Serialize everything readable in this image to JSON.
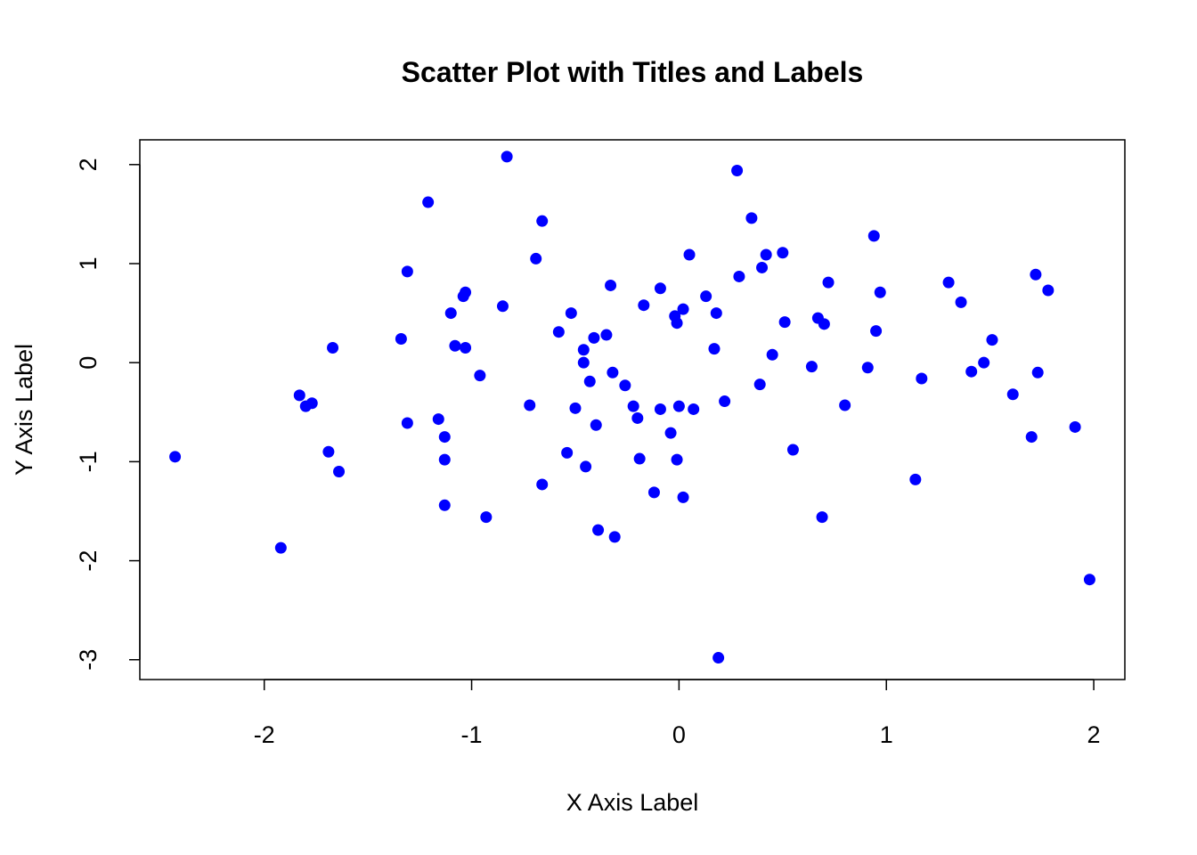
{
  "chart_data": {
    "type": "scatter",
    "title": "Scatter Plot with Titles and Labels",
    "xlabel": "X Axis Label",
    "ylabel": "Y Axis Label",
    "xlim": [
      -2.6,
      2.15
    ],
    "ylim": [
      -3.2,
      2.25
    ],
    "x_ticks": [
      -2,
      -1,
      0,
      1,
      2
    ],
    "x_tick_labels": [
      "-2",
      "-1",
      "0",
      "1",
      "2"
    ],
    "y_ticks": [
      -3,
      -2,
      -1,
      0,
      1,
      2
    ],
    "y_tick_labels": [
      "-3",
      "-2",
      "-1",
      "0",
      "1",
      "2"
    ],
    "grid": false,
    "point_color": "#0000ff",
    "series": [
      {
        "points": [
          [
            -2.43,
            -0.95
          ],
          [
            -1.92,
            -1.87
          ],
          [
            -1.83,
            -0.33
          ],
          [
            -1.8,
            -0.44
          ],
          [
            -1.77,
            -0.41
          ],
          [
            -1.69,
            -0.9
          ],
          [
            -1.67,
            0.15
          ],
          [
            -1.64,
            -1.1
          ],
          [
            -1.34,
            0.24
          ],
          [
            -1.31,
            0.92
          ],
          [
            -1.31,
            -0.61
          ],
          [
            -1.21,
            1.62
          ],
          [
            -1.16,
            -0.57
          ],
          [
            -1.13,
            -0.75
          ],
          [
            -1.13,
            -0.98
          ],
          [
            -1.13,
            -1.44
          ],
          [
            -1.1,
            0.5
          ],
          [
            -1.08,
            0.17
          ],
          [
            -1.04,
            0.67
          ],
          [
            -1.03,
            0.71
          ],
          [
            -1.03,
            0.15
          ],
          [
            -0.96,
            -0.13
          ],
          [
            -0.93,
            -1.56
          ],
          [
            -0.85,
            0.57
          ],
          [
            -0.83,
            2.08
          ],
          [
            -0.72,
            -0.43
          ],
          [
            -0.69,
            1.05
          ],
          [
            -0.66,
            1.43
          ],
          [
            -0.66,
            -1.23
          ],
          [
            -0.58,
            0.31
          ],
          [
            -0.54,
            -0.91
          ],
          [
            -0.52,
            0.5
          ],
          [
            -0.5,
            -0.46
          ],
          [
            -0.46,
            0.13
          ],
          [
            -0.46,
            0.0
          ],
          [
            -0.45,
            -1.05
          ],
          [
            -0.43,
            -0.19
          ],
          [
            -0.41,
            0.25
          ],
          [
            -0.4,
            -0.63
          ],
          [
            -0.39,
            -1.69
          ],
          [
            -0.35,
            0.28
          ],
          [
            -0.33,
            0.78
          ],
          [
            -0.32,
            -0.1
          ],
          [
            -0.31,
            -1.76
          ],
          [
            -0.26,
            -0.23
          ],
          [
            -0.22,
            -0.44
          ],
          [
            -0.2,
            -0.56
          ],
          [
            -0.19,
            -0.97
          ],
          [
            -0.17,
            0.58
          ],
          [
            -0.12,
            -1.31
          ],
          [
            -0.09,
            -0.47
          ],
          [
            -0.09,
            0.75
          ],
          [
            -0.04,
            -0.71
          ],
          [
            -0.02,
            0.47
          ],
          [
            -0.01,
            0.4
          ],
          [
            -0.01,
            -0.98
          ],
          [
            0.0,
            -0.44
          ],
          [
            0.02,
            0.54
          ],
          [
            0.02,
            -1.36
          ],
          [
            0.05,
            1.09
          ],
          [
            0.07,
            -0.47
          ],
          [
            0.13,
            0.67
          ],
          [
            0.17,
            0.14
          ],
          [
            0.18,
            0.5
          ],
          [
            0.19,
            -2.98
          ],
          [
            0.22,
            -0.39
          ],
          [
            0.28,
            1.94
          ],
          [
            0.29,
            0.87
          ],
          [
            0.35,
            1.46
          ],
          [
            0.39,
            -0.22
          ],
          [
            0.4,
            0.96
          ],
          [
            0.42,
            1.09
          ],
          [
            0.45,
            0.08
          ],
          [
            0.5,
            1.11
          ],
          [
            0.51,
            0.41
          ],
          [
            0.55,
            -0.88
          ],
          [
            0.64,
            -0.04
          ],
          [
            0.67,
            0.45
          ],
          [
            0.69,
            -1.56
          ],
          [
            0.7,
            0.39
          ],
          [
            0.72,
            0.81
          ],
          [
            0.8,
            -0.43
          ],
          [
            0.91,
            -0.05
          ],
          [
            0.94,
            1.28
          ],
          [
            0.95,
            0.32
          ],
          [
            0.97,
            0.71
          ],
          [
            1.14,
            -1.18
          ],
          [
            1.17,
            -0.16
          ],
          [
            1.3,
            0.81
          ],
          [
            1.36,
            0.61
          ],
          [
            1.41,
            -0.09
          ],
          [
            1.47,
            0.0
          ],
          [
            1.51,
            0.23
          ],
          [
            1.61,
            -0.32
          ],
          [
            1.7,
            -0.75
          ],
          [
            1.72,
            0.89
          ],
          [
            1.73,
            -0.1
          ],
          [
            1.78,
            0.73
          ],
          [
            1.91,
            -0.65
          ],
          [
            1.98,
            -2.19
          ]
        ]
      }
    ]
  }
}
